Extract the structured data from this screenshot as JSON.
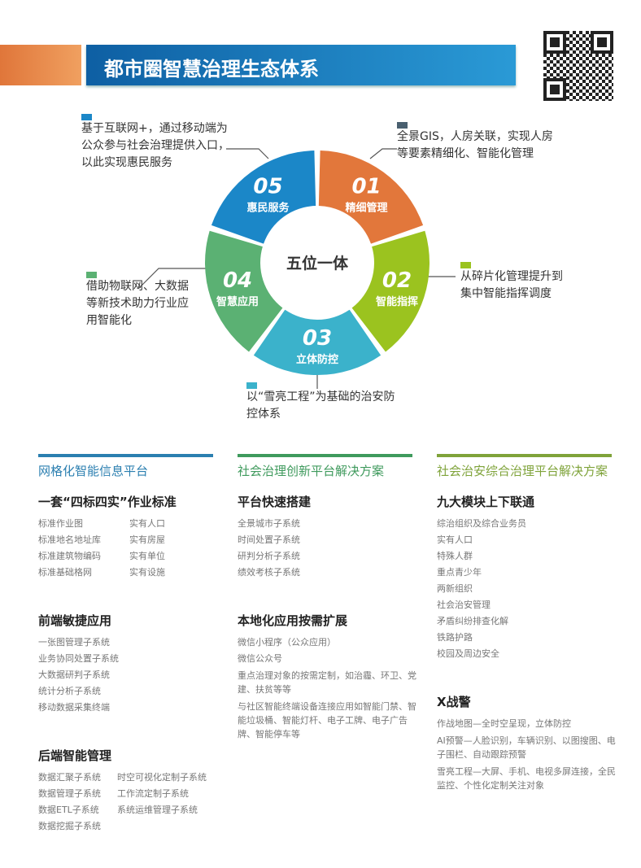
{
  "header": {
    "title": "都市圈智慧治理生态体系"
  },
  "wheel": {
    "center": "五位一体",
    "segments": [
      {
        "num": "01",
        "label": "精细管理",
        "color": "#e2773b",
        "note": [
          "全景GIS，人房关联，实现人房",
          "等要素精细化、智能化管理"
        ]
      },
      {
        "num": "02",
        "label": "智能指挥",
        "color": "#9bc31f",
        "note": [
          "从碎片化管理提升到",
          "集中智能指挥调度"
        ]
      },
      {
        "num": "03",
        "label": "立体防控",
        "color": "#3bb2cb",
        "note": [
          "以“雪亮工程”为基础的治安防",
          "控体系"
        ]
      },
      {
        "num": "04",
        "label": "智慧应用",
        "color": "#5bb173",
        "note": [
          "借助物联网、大数据",
          "等新技术助力行业应",
          "用智能化"
        ]
      },
      {
        "num": "05",
        "label": "惠民服务",
        "color": "#1b87c8",
        "note": [
          "基于互联网+，通过移动端为",
          "公众参与社会治理提供入口，",
          "以此实现惠民服务"
        ]
      }
    ]
  },
  "columns": [
    {
      "title": "网格化智能信息平台",
      "color": "#2b7fb0",
      "sections": [
        {
          "heading": "一套“四标四实”作业标准",
          "items": [
            "标准作业图",
            "标准地名地址库",
            "标准建筑物编码",
            "标准基础格网"
          ],
          "items2": [
            "实有人口",
            "实有房屋",
            "实有单位",
            "实有设施"
          ]
        },
        {
          "heading": "前端敏捷应用",
          "items": [
            "一张图管理子系统",
            "业务协同处置子系统",
            "大数据研判子系统",
            "统计分析子系统",
            "移动数据采集终端"
          ]
        },
        {
          "heading": "后端智能管理",
          "items": [
            "数据汇聚子系统",
            "数据管理子系统",
            "数据ETL子系统",
            "数据挖掘子系统"
          ],
          "items2": [
            "时空可视化定制子系统",
            "工作流定制子系统",
            "系统运维管理子系统"
          ]
        }
      ]
    },
    {
      "title": "社会治理创新平台解决方案",
      "color": "#3f9a5d",
      "sections": [
        {
          "heading": "平台快速搭建",
          "items": [
            "全景城市子系统",
            "时间处置子系统",
            "研判分析子系统",
            "绩效考核子系统"
          ]
        },
        {
          "heading": "本地化应用按需扩展",
          "items": [
            "微信小程序（公众应用）",
            "微信公众号",
            "重点治理对象的按需定制，如治霾、环卫、党建、扶贫等等",
            "与社区智能终端设备连接应用如智能门禁、智能垃圾桶、智能灯杆、电子工牌、电子广告牌、智能停车等"
          ]
        }
      ]
    },
    {
      "title": "社会治安综合治理平台解决方案",
      "color": "#7fa33a",
      "sections": [
        {
          "heading": "九大模块上下联通",
          "items": [
            "综治组织及综合业务员",
            "实有人口",
            "特殊人群",
            "重点青少年",
            "两新组织",
            "社会治安管理",
            "矛盾纠纷排查化解",
            "铁路护路",
            "校园及周边安全"
          ]
        },
        {
          "heading": "X战警",
          "items": [
            "作战地图—全时空呈现，立体防控",
            "AI预警—人脸识别，车辆识别、以图搜图、电子围栏、自动跟踪预警",
            "雪亮工程—大屏、手机、电视多屏连接，全民监控、个性化定制关注对象"
          ]
        }
      ]
    }
  ]
}
